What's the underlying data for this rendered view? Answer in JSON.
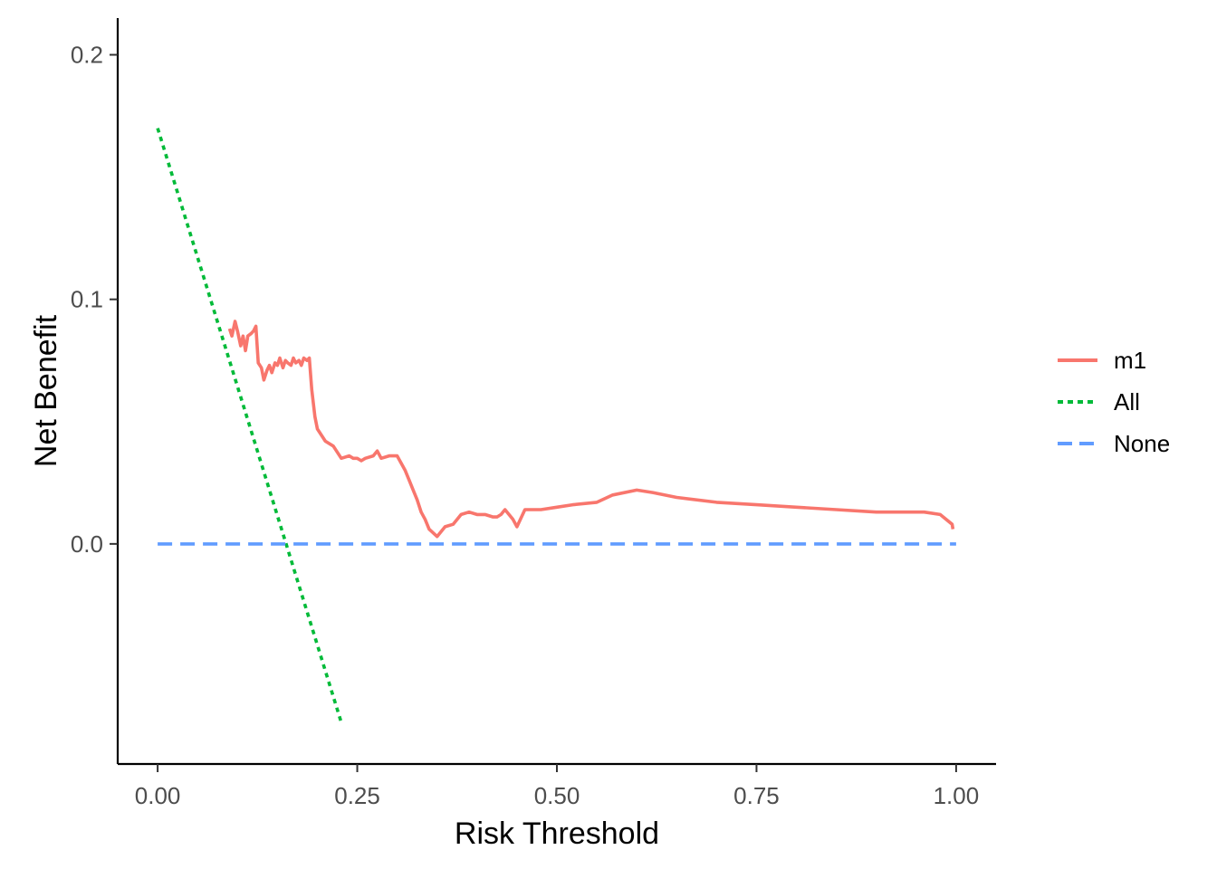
{
  "chart_data": {
    "type": "line",
    "xlabel": "Risk Threshold",
    "ylabel": "Net Benefit",
    "xlim": [
      -0.05,
      1.05
    ],
    "ylim": [
      -0.09,
      0.215
    ],
    "x_ticks": [
      0.0,
      0.25,
      0.5,
      0.75,
      1.0
    ],
    "x_tick_labels": [
      "0.00",
      "0.25",
      "0.50",
      "0.75",
      "1.00"
    ],
    "y_ticks": [
      0.0,
      0.1,
      0.2
    ],
    "y_tick_labels": [
      "0.0",
      "0.1",
      "0.2"
    ],
    "grid": false,
    "legend_position": "right",
    "series": [
      {
        "name": "m1",
        "color": "#F8766D",
        "dash": "solid",
        "x": [
          0.09,
          0.093,
          0.097,
          0.1,
          0.104,
          0.107,
          0.11,
          0.113,
          0.117,
          0.12,
          0.123,
          0.126,
          0.13,
          0.133,
          0.137,
          0.14,
          0.143,
          0.147,
          0.15,
          0.153,
          0.157,
          0.16,
          0.163,
          0.167,
          0.17,
          0.173,
          0.177,
          0.18,
          0.183,
          0.187,
          0.19,
          0.193,
          0.197,
          0.2,
          0.21,
          0.22,
          0.23,
          0.24,
          0.245,
          0.25,
          0.255,
          0.26,
          0.27,
          0.275,
          0.28,
          0.29,
          0.3,
          0.31,
          0.315,
          0.32,
          0.325,
          0.33,
          0.335,
          0.34,
          0.35,
          0.36,
          0.37,
          0.38,
          0.39,
          0.4,
          0.41,
          0.42,
          0.425,
          0.43,
          0.435,
          0.44,
          0.445,
          0.45,
          0.46,
          0.48,
          0.5,
          0.52,
          0.55,
          0.57,
          0.6,
          0.62,
          0.65,
          0.7,
          0.75,
          0.8,
          0.85,
          0.9,
          0.95,
          0.96,
          0.98,
          0.995,
          0.996
        ],
        "y": [
          0.088,
          0.085,
          0.091,
          0.087,
          0.081,
          0.085,
          0.079,
          0.085,
          0.086,
          0.087,
          0.089,
          0.074,
          0.072,
          0.067,
          0.071,
          0.073,
          0.07,
          0.074,
          0.073,
          0.076,
          0.072,
          0.075,
          0.074,
          0.073,
          0.076,
          0.074,
          0.075,
          0.073,
          0.076,
          0.075,
          0.076,
          0.063,
          0.052,
          0.047,
          0.042,
          0.04,
          0.035,
          0.036,
          0.035,
          0.035,
          0.034,
          0.035,
          0.036,
          0.038,
          0.035,
          0.036,
          0.036,
          0.03,
          0.026,
          0.022,
          0.018,
          0.013,
          0.01,
          0.006,
          0.003,
          0.007,
          0.008,
          0.012,
          0.013,
          0.012,
          0.012,
          0.011,
          0.011,
          0.012,
          0.014,
          0.012,
          0.01,
          0.007,
          0.014,
          0.014,
          0.015,
          0.016,
          0.017,
          0.02,
          0.022,
          0.021,
          0.019,
          0.017,
          0.016,
          0.015,
          0.014,
          0.013,
          0.013,
          0.013,
          0.012,
          0.008,
          0.006
        ]
      },
      {
        "name": "All",
        "color": "#00BA38",
        "dash": "dotted",
        "x": [
          0.0,
          0.23
        ],
        "y": [
          0.17,
          -0.073
        ]
      },
      {
        "name": "None",
        "color": "#619CFF",
        "dash": "dashed",
        "x": [
          0.0,
          1.0
        ],
        "y": [
          0.0,
          0.0
        ]
      }
    ]
  }
}
